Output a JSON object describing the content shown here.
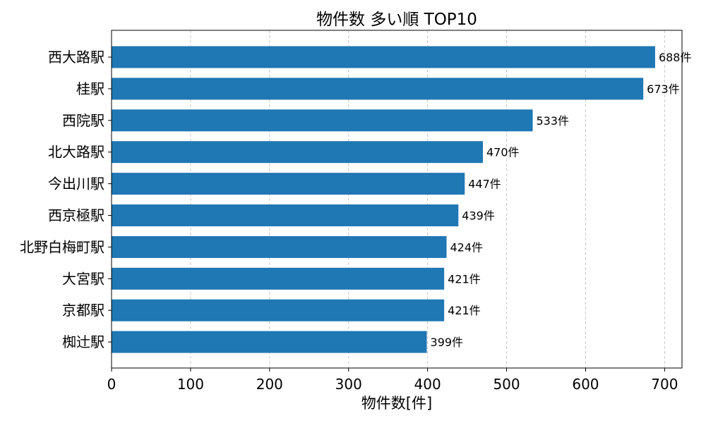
{
  "chart_data": {
    "type": "bar",
    "orientation": "horizontal",
    "title": "物件数 多い順 TOP10",
    "xlabel": "物件数[件]",
    "ylabel": "",
    "categories": [
      "西大路駅",
      "桂駅",
      "西院駅",
      "北大路駅",
      "今出川駅",
      "西京極駅",
      "北野白梅町駅",
      "大宮駅",
      "京都駅",
      "椥辻駅"
    ],
    "values": [
      688,
      673,
      533,
      470,
      447,
      439,
      424,
      421,
      421,
      399
    ],
    "value_suffix": "件",
    "xlim": [
      0,
      722
    ],
    "xticks": [
      0,
      100,
      200,
      300,
      400,
      500,
      600,
      700
    ],
    "grid": "x dashed",
    "colors": {
      "bar": "#1f77b4"
    }
  }
}
